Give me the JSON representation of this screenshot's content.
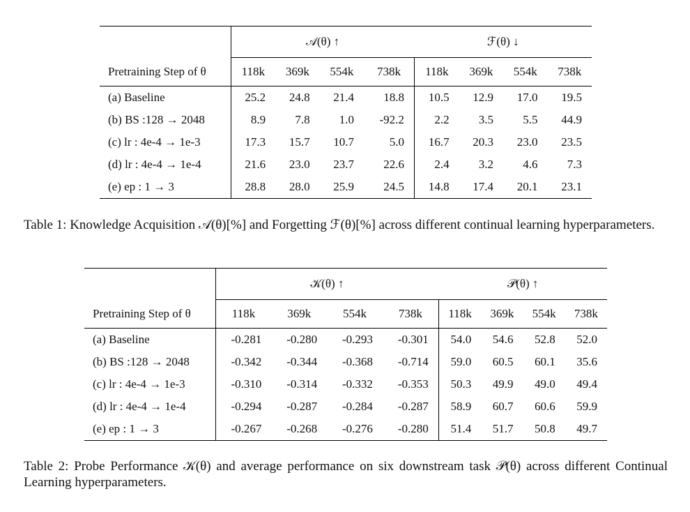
{
  "table1": {
    "group_headers": [
      "𝒜(θ) ↑",
      "ℱ(θ) ↓"
    ],
    "row_header": "Pretraining Step of θ",
    "steps": [
      "118k",
      "369k",
      "554k",
      "738k",
      "118k",
      "369k",
      "554k",
      "738k"
    ],
    "rows": [
      {
        "label": "(a) Baseline",
        "values": [
          "25.2",
          "24.8",
          "21.4",
          "18.8",
          "10.5",
          "12.9",
          "17.0",
          "19.5"
        ]
      },
      {
        "label": "(b) BS :128 → 2048",
        "values": [
          "8.9",
          "7.8",
          "1.0",
          "-92.2",
          "2.2",
          "3.5",
          "5.5",
          "44.9"
        ]
      },
      {
        "label": "(c) lr : 4e-4 → 1e-3",
        "values": [
          "17.3",
          "15.7",
          "10.7",
          "5.0",
          "16.7",
          "20.3",
          "23.0",
          "23.5"
        ]
      },
      {
        "label": "(d) lr : 4e-4 → 1e-4",
        "values": [
          "21.6",
          "23.0",
          "23.7",
          "22.6",
          "2.4",
          "3.2",
          "4.6",
          "7.3"
        ]
      },
      {
        "label": "(e) ep : 1 → 3",
        "values": [
          "28.8",
          "28.0",
          "25.9",
          "24.5",
          "14.8",
          "17.4",
          "20.1",
          "23.1"
        ]
      }
    ],
    "caption": "Table 1: Knowledge Acquisition 𝒜(θ)[%] and Forgetting ℱ(θ)[%] across different continual learning hyperparameters."
  },
  "table2": {
    "group_headers": [
      "𝒦(θ) ↑",
      "𝒫(θ) ↑"
    ],
    "row_header": "Pretraining Step of θ",
    "steps": [
      "118k",
      "369k",
      "554k",
      "738k",
      "118k",
      "369k",
      "554k",
      "738k"
    ],
    "rows": [
      {
        "label": "(a) Baseline",
        "values": [
          "-0.281",
          "-0.280",
          "-0.293",
          "-0.301",
          "54.0",
          "54.6",
          "52.8",
          "52.0"
        ]
      },
      {
        "label": "(b) BS :128 → 2048",
        "values": [
          "-0.342",
          "-0.344",
          "-0.368",
          "-0.714",
          "59.0",
          "60.5",
          "60.1",
          "35.6"
        ]
      },
      {
        "label": "(c) lr : 4e-4 → 1e-3",
        "values": [
          "-0.310",
          "-0.314",
          "-0.332",
          "-0.353",
          "50.3",
          "49.9",
          "49.0",
          "49.4"
        ]
      },
      {
        "label": "(d) lr : 4e-4 → 1e-4",
        "values": [
          "-0.294",
          "-0.287",
          "-0.284",
          "-0.287",
          "58.9",
          "60.7",
          "60.6",
          "59.9"
        ]
      },
      {
        "label": "(e) ep : 1 → 3",
        "values": [
          "-0.267",
          "-0.268",
          "-0.276",
          "-0.280",
          "51.4",
          "51.7",
          "50.8",
          "49.7"
        ]
      }
    ],
    "caption": "Table 2: Probe Performance 𝒦(θ) and average performance on six downstream task 𝒫(θ) across different Continual Learning hyperparameters."
  }
}
